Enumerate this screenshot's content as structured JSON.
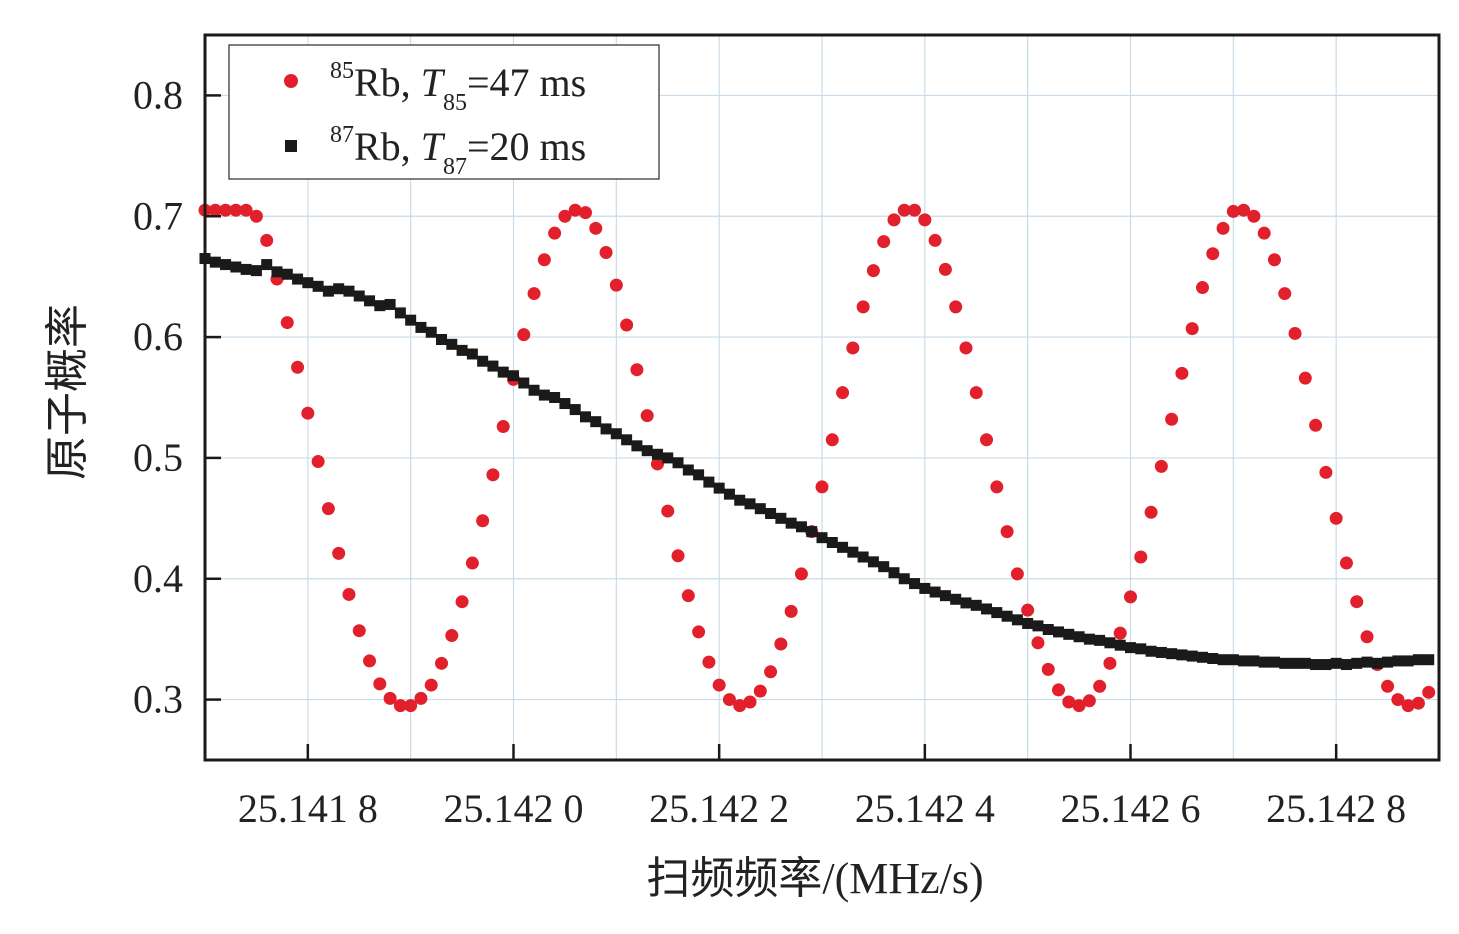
{
  "chart_data": {
    "type": "scatter",
    "title": "",
    "xlabel": "扫频频率/(MHz/s)",
    "ylabel": "原子概率",
    "xlim": [
      25.1417,
      25.1429
    ],
    "ylim": [
      0.25,
      0.85
    ],
    "grid": true,
    "legend_position": "top-left",
    "x_ticks": [
      25.1418,
      25.142,
      25.1422,
      25.1424,
      25.1426,
      25.1428
    ],
    "x_tick_labels": [
      "25.141 8",
      "25.142 0",
      "25.142 2",
      "25.142 4",
      "25.142 6",
      "25.142 8"
    ],
    "y_ticks": [
      0.3,
      0.4,
      0.5,
      0.6,
      0.7,
      0.8
    ],
    "y_tick_labels": [
      "0.3",
      "0.4",
      "0.5",
      "0.6",
      "0.7",
      "0.8"
    ],
    "series": [
      {
        "name": "85Rb",
        "legend": {
          "isotope": "85",
          "element": "Rb, ",
          "var": "T",
          "sub": "85",
          "rest": "=47 ms"
        },
        "marker": "circle",
        "color": "#e2202c",
        "model": "0.5 + 0.205*cos(2*pi*(x - 25.14222)/0.00042), clipped to [0.295, 0.705]",
        "x": [
          25.1417,
          25.14171,
          25.14172,
          25.14173,
          25.14174,
          25.14175,
          25.14176,
          25.14177,
          25.14178,
          25.14179,
          25.1418,
          25.14181,
          25.14182,
          25.14183,
          25.14184,
          25.14185,
          25.14186,
          25.14187,
          25.14188,
          25.14189,
          25.1419,
          25.14191,
          25.14192,
          25.14193,
          25.14194,
          25.14195,
          25.14196,
          25.14197,
          25.14198,
          25.14199,
          25.142,
          25.14201,
          25.14202,
          25.14203,
          25.14204,
          25.14205,
          25.14206,
          25.14207,
          25.14208,
          25.14209,
          25.1421,
          25.14211,
          25.14212,
          25.14213,
          25.14214,
          25.14215,
          25.14216,
          25.14217,
          25.14218,
          25.14219,
          25.1422,
          25.14221,
          25.14222,
          25.14223,
          25.14224,
          25.14225,
          25.14226,
          25.14227,
          25.14228,
          25.14229,
          25.1423,
          25.14231,
          25.14232,
          25.14233,
          25.14234,
          25.14235,
          25.14236,
          25.14237,
          25.14238,
          25.14239,
          25.1424,
          25.14241,
          25.14242,
          25.14243,
          25.14244,
          25.14245,
          25.14246,
          25.14247,
          25.14248,
          25.14249,
          25.1425,
          25.14251,
          25.14252,
          25.14253,
          25.14254,
          25.14255,
          25.14256,
          25.14257,
          25.14258,
          25.14259,
          25.1426,
          25.14261,
          25.14262,
          25.14263,
          25.14264,
          25.14265,
          25.14266,
          25.14267,
          25.14268,
          25.14269,
          25.1427,
          25.14271,
          25.14272,
          25.14273,
          25.14274,
          25.14275,
          25.14276,
          25.14277,
          25.14278,
          25.14279,
          25.1428,
          25.14281,
          25.14282,
          25.14283,
          25.14284,
          25.14285,
          25.14286,
          25.14287,
          25.14288,
          25.14289
        ],
        "y": [
          0.705,
          0.705,
          0.705,
          0.705,
          0.705,
          0.7,
          0.68,
          0.648,
          0.612,
          0.575,
          0.537,
          0.497,
          0.458,
          0.421,
          0.387,
          0.357,
          0.332,
          0.313,
          0.301,
          0.295,
          0.295,
          0.301,
          0.312,
          0.33,
          0.353,
          0.381,
          0.413,
          0.448,
          0.486,
          0.526,
          0.565,
          0.602,
          0.636,
          0.664,
          0.686,
          0.7,
          0.705,
          0.703,
          0.69,
          0.67,
          0.643,
          0.61,
          0.573,
          0.535,
          0.495,
          0.456,
          0.419,
          0.386,
          0.356,
          0.331,
          0.312,
          0.3,
          0.295,
          0.298,
          0.307,
          0.323,
          0.346,
          0.373,
          0.404,
          0.439,
          0.476,
          0.515,
          0.554,
          0.591,
          0.625,
          0.655,
          0.679,
          0.697,
          0.705,
          0.705,
          0.697,
          0.68,
          0.656,
          0.625,
          0.591,
          0.554,
          0.515,
          0.476,
          0.439,
          0.404,
          0.374,
          0.347,
          0.325,
          0.308,
          0.298,
          0.295,
          0.299,
          0.311,
          0.33,
          0.355,
          0.385,
          0.418,
          0.455,
          0.493,
          0.532,
          0.57,
          0.607,
          0.641,
          0.669,
          0.69,
          0.704,
          0.705,
          0.7,
          0.686,
          0.664,
          0.636,
          0.603,
          0.566,
          0.527,
          0.488,
          0.45,
          0.413,
          0.381,
          0.352,
          0.329,
          0.311,
          0.3,
          0.295,
          0.297,
          0.306
        ]
      },
      {
        "name": "87Rb",
        "legend": {
          "isotope": "87",
          "element": "Rb, ",
          "var": "T",
          "sub": "87",
          "rest": "=20 ms"
        },
        "marker": "square",
        "color": "#1a1a1a",
        "x": [
          25.1417,
          25.14171,
          25.14172,
          25.14173,
          25.14174,
          25.14175,
          25.14176,
          25.14177,
          25.14178,
          25.14179,
          25.1418,
          25.14181,
          25.14182,
          25.14183,
          25.14184,
          25.14185,
          25.14186,
          25.14187,
          25.14188,
          25.14189,
          25.1419,
          25.14191,
          25.14192,
          25.14193,
          25.14194,
          25.14195,
          25.14196,
          25.14197,
          25.14198,
          25.14199,
          25.142,
          25.14201,
          25.14202,
          25.14203,
          25.14204,
          25.14205,
          25.14206,
          25.14207,
          25.14208,
          25.14209,
          25.1421,
          25.14211,
          25.14212,
          25.14213,
          25.14214,
          25.14215,
          25.14216,
          25.14217,
          25.14218,
          25.14219,
          25.1422,
          25.14221,
          25.14222,
          25.14223,
          25.14224,
          25.14225,
          25.14226,
          25.14227,
          25.14228,
          25.14229,
          25.1423,
          25.14231,
          25.14232,
          25.14233,
          25.14234,
          25.14235,
          25.14236,
          25.14237,
          25.14238,
          25.14239,
          25.1424,
          25.14241,
          25.14242,
          25.14243,
          25.14244,
          25.14245,
          25.14246,
          25.14247,
          25.14248,
          25.14249,
          25.1425,
          25.14251,
          25.14252,
          25.14253,
          25.14254,
          25.14255,
          25.14256,
          25.14257,
          25.14258,
          25.14259,
          25.1426,
          25.14261,
          25.14262,
          25.14263,
          25.14264,
          25.14265,
          25.14266,
          25.14267,
          25.14268,
          25.14269,
          25.1427,
          25.14271,
          25.14272,
          25.14273,
          25.14274,
          25.14275,
          25.14276,
          25.14277,
          25.14278,
          25.14279,
          25.1428,
          25.14281,
          25.14282,
          25.14283,
          25.14284,
          25.14285,
          25.14286,
          25.14287,
          25.14288,
          25.14289
        ],
        "y": [
          0.665,
          0.662,
          0.66,
          0.658,
          0.656,
          0.655,
          0.66,
          0.654,
          0.652,
          0.648,
          0.645,
          0.642,
          0.638,
          0.64,
          0.638,
          0.634,
          0.63,
          0.626,
          0.627,
          0.62,
          0.614,
          0.608,
          0.604,
          0.598,
          0.594,
          0.589,
          0.586,
          0.58,
          0.576,
          0.571,
          0.568,
          0.562,
          0.556,
          0.552,
          0.55,
          0.545,
          0.54,
          0.534,
          0.53,
          0.524,
          0.52,
          0.515,
          0.51,
          0.506,
          0.503,
          0.5,
          0.496,
          0.49,
          0.486,
          0.48,
          0.475,
          0.47,
          0.465,
          0.462,
          0.458,
          0.454,
          0.45,
          0.446,
          0.443,
          0.439,
          0.434,
          0.43,
          0.426,
          0.422,
          0.418,
          0.414,
          0.41,
          0.405,
          0.4,
          0.396,
          0.392,
          0.389,
          0.386,
          0.383,
          0.38,
          0.378,
          0.375,
          0.372,
          0.369,
          0.366,
          0.363,
          0.361,
          0.358,
          0.356,
          0.354,
          0.352,
          0.35,
          0.349,
          0.347,
          0.345,
          0.343,
          0.342,
          0.34,
          0.339,
          0.338,
          0.337,
          0.336,
          0.335,
          0.334,
          0.333,
          0.333,
          0.332,
          0.332,
          0.331,
          0.331,
          0.33,
          0.33,
          0.33,
          0.329,
          0.329,
          0.33,
          0.329,
          0.33,
          0.331,
          0.33,
          0.331,
          0.332,
          0.332,
          0.333,
          0.333
        ]
      }
    ]
  }
}
